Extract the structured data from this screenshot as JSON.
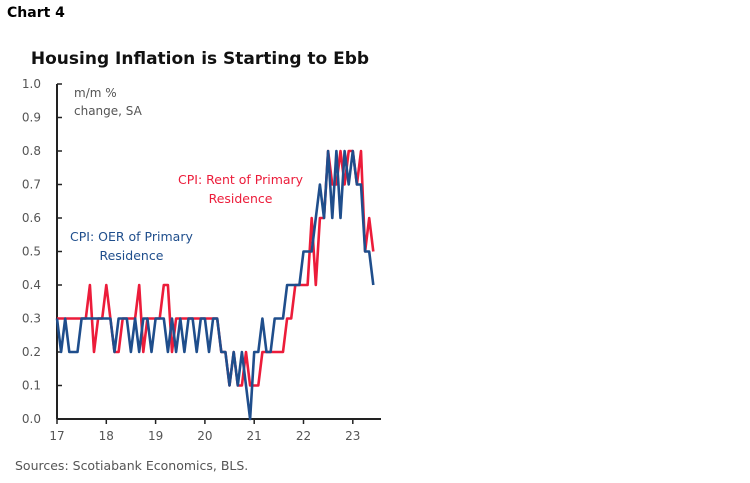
{
  "chart_label": "Chart 4",
  "chart_data": {
    "type": "line",
    "title": "Housing Inflation is Starting to Ebb",
    "ylabel": "m/m %\nchange, SA",
    "xlabel": "",
    "ylim": [
      0.0,
      1.0
    ],
    "yticks": [
      "0.0",
      "0.1",
      "0.2",
      "0.3",
      "0.4",
      "0.5",
      "0.6",
      "0.7",
      "0.8",
      "0.9",
      "1.0"
    ],
    "xticks": [
      "17",
      "18",
      "19",
      "20",
      "21",
      "22",
      "23"
    ],
    "x_start": "2017-01",
    "frequency": "monthly",
    "grid": false,
    "series": [
      {
        "name": "CPI: Rent of Primary\nResidence",
        "color": "#EC1C3A",
        "values": [
          0.3,
          0.3,
          0.3,
          0.3,
          0.3,
          0.3,
          0.3,
          0.3,
          0.4,
          0.2,
          0.3,
          0.3,
          0.4,
          0.3,
          0.2,
          0.2,
          0.3,
          0.3,
          0.3,
          0.3,
          0.4,
          0.2,
          0.3,
          0.3,
          0.3,
          0.3,
          0.4,
          0.4,
          0.2,
          0.3,
          0.3,
          0.3,
          0.3,
          0.3,
          0.3,
          0.3,
          0.3,
          0.3,
          0.3,
          0.3,
          0.2,
          0.2,
          0.1,
          0.2,
          0.1,
          0.1,
          0.2,
          0.1,
          0.1,
          0.1,
          0.2,
          0.2,
          0.2,
          0.2,
          0.2,
          0.2,
          0.3,
          0.3,
          0.4,
          0.4,
          0.4,
          0.4,
          0.6,
          0.4,
          0.6,
          0.6,
          0.8,
          0.7,
          0.7,
          0.8,
          0.7,
          0.8,
          0.8,
          0.7,
          0.8,
          0.5,
          0.6,
          0.5
        ]
      },
      {
        "name": "CPI: OER of Primary\nResidence",
        "color": "#1F4E8C",
        "values": [
          0.3,
          0.2,
          0.3,
          0.2,
          0.2,
          0.2,
          0.3,
          0.3,
          0.3,
          0.3,
          0.3,
          0.3,
          0.3,
          0.3,
          0.2,
          0.3,
          0.3,
          0.3,
          0.2,
          0.3,
          0.2,
          0.3,
          0.3,
          0.2,
          0.3,
          0.3,
          0.3,
          0.2,
          0.3,
          0.2,
          0.3,
          0.2,
          0.3,
          0.3,
          0.2,
          0.3,
          0.3,
          0.2,
          0.3,
          0.3,
          0.2,
          0.2,
          0.1,
          0.2,
          0.1,
          0.2,
          0.1,
          0.0,
          0.2,
          0.2,
          0.3,
          0.2,
          0.2,
          0.3,
          0.3,
          0.3,
          0.4,
          0.4,
          0.4,
          0.4,
          0.5,
          0.5,
          0.5,
          0.6,
          0.7,
          0.6,
          0.8,
          0.6,
          0.8,
          0.6,
          0.8,
          0.7,
          0.8,
          0.7,
          0.7,
          0.5,
          0.5,
          0.4
        ]
      }
    ]
  },
  "source": "Sources: Scotiabank Economics, BLS."
}
